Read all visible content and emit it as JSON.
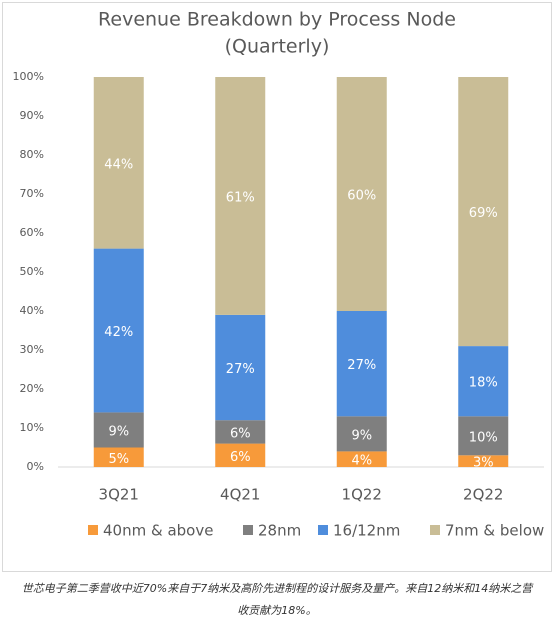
{
  "chart_data": {
    "type": "stacked_bar",
    "title": "Revenue Breakdown by Process Node",
    "subtitle": "(Quarterly)",
    "categories": [
      "3Q21",
      "4Q21",
      "1Q22",
      "2Q22"
    ],
    "series": [
      {
        "name": "40nm & above",
        "color": "#f79a3a",
        "values": [
          5,
          6,
          4,
          3
        ],
        "value_labels": [
          "5%",
          "6%",
          "4%",
          "3%"
        ]
      },
      {
        "name": "28nm",
        "color": "#7f7f7f",
        "values": [
          9,
          6,
          9,
          10
        ],
        "value_labels": [
          "9%",
          "6%",
          "9%",
          "10%"
        ]
      },
      {
        "name": "16/12nm",
        "color": "#4f8ddc",
        "values": [
          42,
          27,
          27,
          18
        ],
        "value_labels": [
          "42%",
          "27%",
          "27%",
          "18%"
        ]
      },
      {
        "name": "7nm & below",
        "color": "#c9bd96",
        "values": [
          44,
          61,
          60,
          69
        ],
        "value_labels": [
          "44%",
          "61%",
          "60%",
          "69%"
        ]
      }
    ],
    "ylim": [
      0,
      100
    ],
    "yticks": [
      {
        "value": 0,
        "label": "0%"
      },
      {
        "value": 10,
        "label": "10%"
      },
      {
        "value": 20,
        "label": "20%"
      },
      {
        "value": 30,
        "label": "30%"
      },
      {
        "value": 40,
        "label": "40%"
      },
      {
        "value": 50,
        "label": "50%"
      },
      {
        "value": 60,
        "label": "60%"
      },
      {
        "value": 70,
        "label": "70%"
      },
      {
        "value": 80,
        "label": "80%"
      },
      {
        "value": 90,
        "label": "90%"
      },
      {
        "value": 100,
        "label": "100%"
      }
    ],
    "grid": false,
    "legend": "bottom",
    "caption": "世芯电子第二季营收中近70%来自于7纳米及高阶先进制程的设计服务及量产。来自12纳米和14纳米之营收贡献为18%。"
  }
}
